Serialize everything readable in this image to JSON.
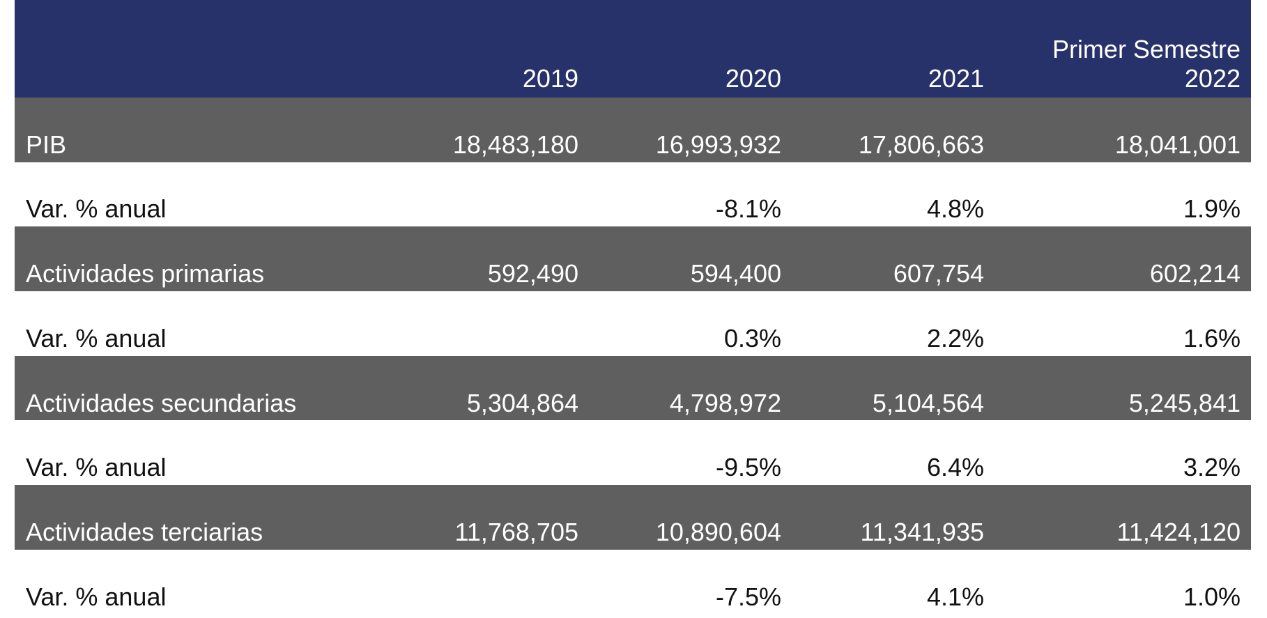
{
  "table": {
    "columns": [
      null,
      "2019",
      "2020",
      "2021",
      "Primer Semestre 2022"
    ],
    "rows": [
      [
        "PIB",
        "18,483,180",
        "16,993,932",
        "17,806,663",
        "18,041,001"
      ],
      [
        "Var. % anual",
        null,
        "-8.1%",
        "4.8%",
        "1.9%"
      ],
      [
        "Actividades primarias",
        "592,490",
        "594,400",
        "607,754",
        "602,214"
      ],
      [
        "Var. % anual",
        null,
        "0.3%",
        "2.2%",
        "1.6%"
      ],
      [
        "Actividades secundarias",
        "5,304,864",
        "4,798,972",
        "5,104,564",
        "5,245,841"
      ],
      [
        "Var. % anual",
        null,
        "-9.5%",
        "6.4%",
        "3.2%"
      ],
      [
        "Actividades terciarias",
        "11,768,705",
        "10,890,604",
        "11,341,935",
        "11,424,120"
      ],
      [
        "Var. % anual",
        null,
        "-7.5%",
        "4.1%",
        "1.0%"
      ]
    ]
  }
}
